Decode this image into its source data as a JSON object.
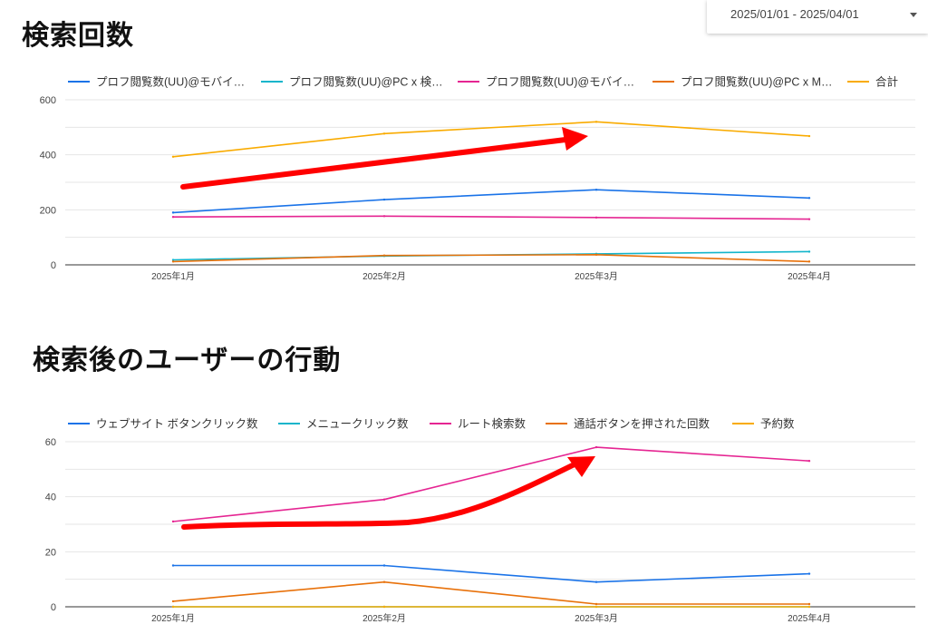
{
  "header": {
    "date_range": "2025/01/01 - 2025/04/01"
  },
  "sections": [
    {
      "title": "検索回数"
    },
    {
      "title": "検索後のユーザーの行動"
    }
  ],
  "chart_data": [
    {
      "type": "line",
      "title": "",
      "categories": [
        "2025年1月",
        "2025年2月",
        "2025年3月",
        "2025年4月"
      ],
      "ylim": [
        0,
        600
      ],
      "yticks": [
        0,
        200,
        400,
        600
      ],
      "grid": true,
      "legend_position": "top",
      "series": [
        {
          "name": "プロフ閲覧数(UU)@モバイ…",
          "color": "#1a73e8",
          "values": [
            190,
            237,
            273,
            243
          ]
        },
        {
          "name": "プロフ閲覧数(UU)@PC x 検…",
          "color": "#12b5cb",
          "values": [
            18,
            32,
            40,
            48
          ]
        },
        {
          "name": "プロフ閲覧数(UU)@モバイ…",
          "color": "#e52592",
          "values": [
            174,
            177,
            172,
            166
          ]
        },
        {
          "name": "プロフ閲覧数(UU)@PC x M…",
          "color": "#e8710a",
          "values": [
            12,
            34,
            37,
            12
          ]
        },
        {
          "name": "合計",
          "color": "#f9ab00",
          "values": [
            393,
            477,
            520,
            468
          ]
        }
      ]
    },
    {
      "type": "line",
      "title": "",
      "categories": [
        "2025年1月",
        "2025年2月",
        "2025年3月",
        "2025年4月"
      ],
      "ylim": [
        0,
        60
      ],
      "yticks": [
        0,
        20,
        40,
        60
      ],
      "grid": true,
      "legend_position": "top",
      "series": [
        {
          "name": "ウェブサイト ボタンクリック数",
          "color": "#1a73e8",
          "values": [
            15,
            15,
            9,
            12
          ]
        },
        {
          "name": "メニュークリック数",
          "color": "#12b5cb",
          "values": [
            0,
            0,
            0,
            0
          ]
        },
        {
          "name": "ルート検索数",
          "color": "#e52592",
          "values": [
            31,
            39,
            58,
            53
          ]
        },
        {
          "name": "通話ボタンを押された回数",
          "color": "#e8710a",
          "values": [
            2,
            9,
            1,
            1
          ]
        },
        {
          "name": "予約数",
          "color": "#f9ab00",
          "values": [
            0,
            0,
            0,
            0
          ]
        }
      ]
    }
  ],
  "annotations": {
    "arrow_color": "#ff0000"
  }
}
